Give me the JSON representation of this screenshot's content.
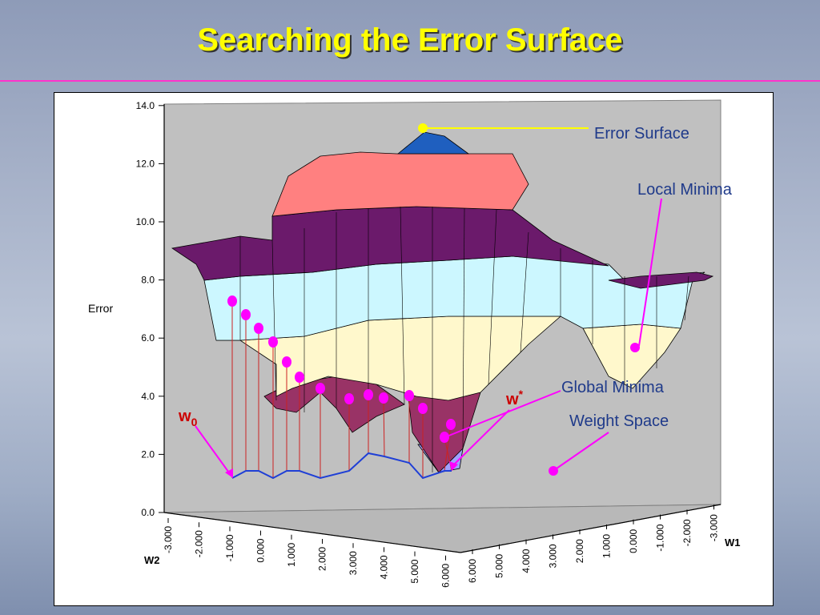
{
  "slide": {
    "title": "Searching the Error Surface"
  },
  "axes": {
    "z_label": "Error",
    "x_label": "W1",
    "y_label": "W2",
    "z_ticks": [
      "0.0",
      "2.0",
      "4.0",
      "6.0",
      "8.0",
      "10.0",
      "12.0",
      "14.0"
    ],
    "w2_ticks": [
      "-3.000",
      "-2.000",
      "-1.000",
      "0.000",
      "1.000",
      "2.000",
      "3.000",
      "4.000",
      "5.000",
      "6.000"
    ],
    "w1_ticks": [
      "6.000",
      "5.000",
      "4.000",
      "3.000",
      "2.000",
      "1.000",
      "0.000",
      "-1.000",
      "-2.000",
      "-3.000"
    ]
  },
  "labels": {
    "error_surface": "Error Surface",
    "local_minima": "Local Minima",
    "global_minima": "Global Minima",
    "weight_space": "Weight Space",
    "w0_base": "w",
    "w0_sub": "0",
    "wstar_base": "w",
    "wstar_sup": "*"
  },
  "colors": {
    "title": "#ffff00",
    "rule": "#ff33cc",
    "annotation_text": "#1f3a8a",
    "marker": "#ff00ff",
    "path": "#1f3fd6",
    "drop_line": "#cc2222",
    "band_dark_blue": "#1f5fbf",
    "band_pink": "#ff8080",
    "band_purple": "#6b1a6b",
    "band_cyan": "#ccf7ff",
    "band_cream": "#fff8cc",
    "band_maroon": "#993366",
    "band_lavender": "#a0a0ff",
    "floor": "#c0c0c0"
  }
}
